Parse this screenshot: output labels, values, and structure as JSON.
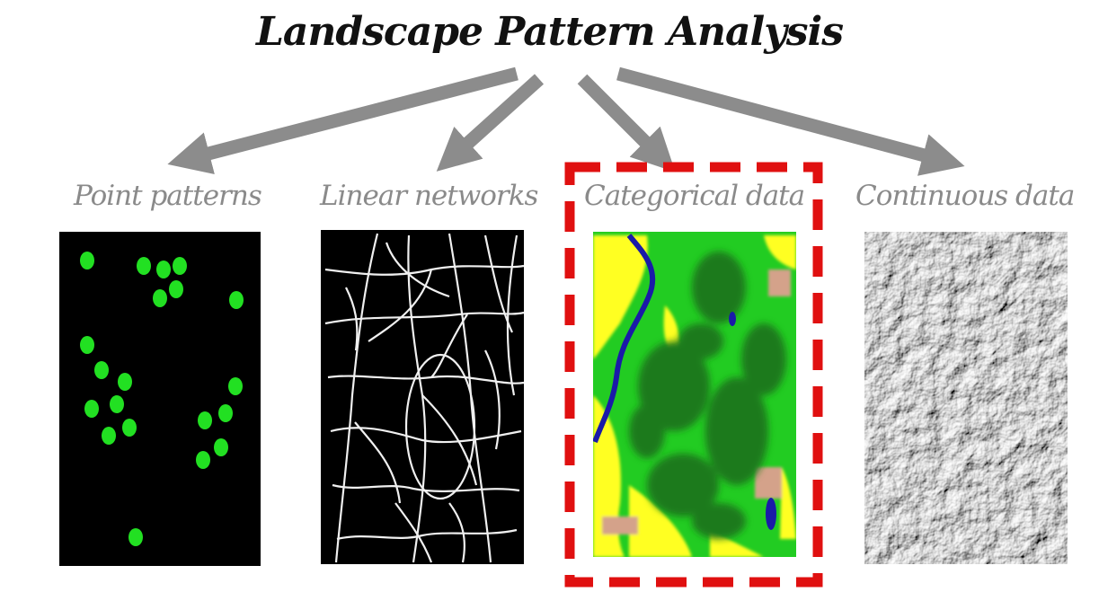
{
  "title": "Landscape Pattern Analysis",
  "categories": [
    {
      "label": "Point patterns"
    },
    {
      "label": "Linear networks"
    },
    {
      "label": "Categorical data",
      "highlighted": true
    },
    {
      "label": "Continuous data"
    }
  ],
  "colors": {
    "arrow": "#8c8c8c",
    "highlight_box": "#e01010",
    "point": "#22e022",
    "panel_bg": "#000000",
    "label": "#8a8a8a",
    "river": "#1a1aa8",
    "yellow_class": "#ffff22",
    "green_class": "#22cc22",
    "dark_green_class": "#1f7a1f"
  }
}
